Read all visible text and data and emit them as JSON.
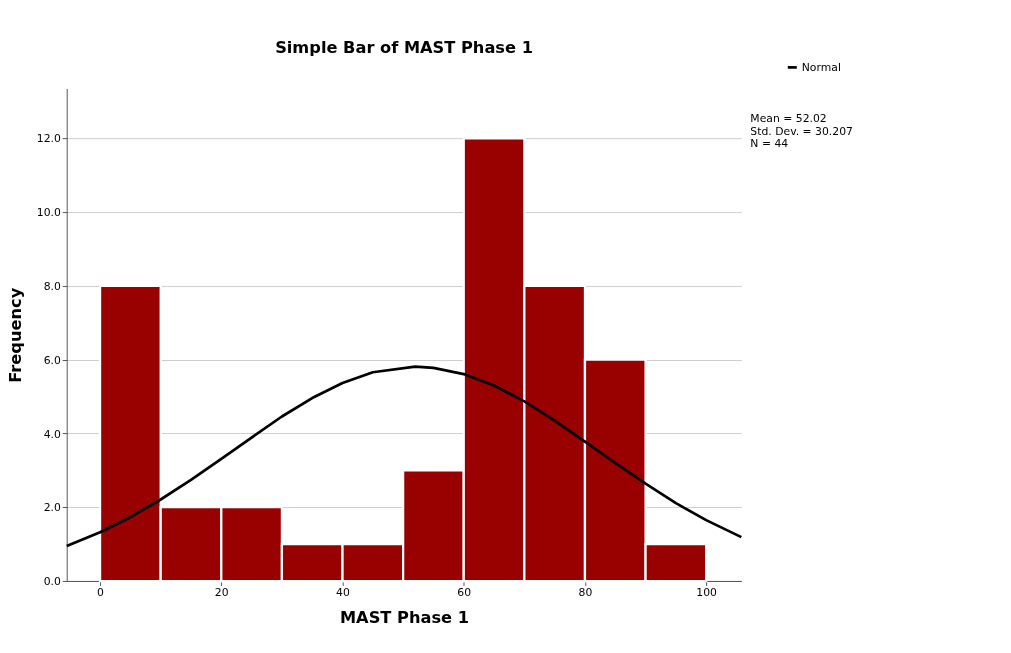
{
  "chart_data": {
    "type": "histogram",
    "title": "Simple Bar of MAST Phase 1",
    "xlabel": "MAST Phase 1",
    "ylabel": "Frequency",
    "bins": [
      0,
      10,
      20,
      30,
      40,
      50,
      60,
      70,
      80,
      90,
      100
    ],
    "values": [
      8,
      2,
      2,
      1,
      1,
      3,
      12,
      8,
      6,
      1
    ],
    "color": "#990000",
    "series": [
      {
        "name": "Normal",
        "type": "line",
        "color": "#000000",
        "x": [
          -5.5,
          0,
          5,
          10,
          15,
          20,
          25,
          30,
          35,
          40,
          45,
          52,
          55,
          60,
          65,
          70,
          75,
          80,
          85,
          90,
          95,
          100,
          105.8
        ],
        "values": [
          0.95,
          1.32,
          1.73,
          2.21,
          2.74,
          3.31,
          3.89,
          4.46,
          4.96,
          5.37,
          5.66,
          5.81,
          5.78,
          5.61,
          5.3,
          4.87,
          4.35,
          3.78,
          3.2,
          2.64,
          2.11,
          1.65,
          1.19
        ]
      }
    ],
    "annotations": [
      "Mean = 52.02",
      "Std. Dev. = 30.207",
      "N = 44"
    ],
    "xlim": [
      -5.5,
      105.8
    ],
    "xticks": [
      0,
      20,
      40,
      60,
      80,
      100
    ],
    "ylim": [
      0,
      13.35
    ],
    "yticks": [
      {
        "value": 0,
        "label": "0.0"
      },
      {
        "value": 2,
        "label": "2.0"
      },
      {
        "value": 4,
        "label": "4.0"
      },
      {
        "value": 6,
        "label": "6.0"
      },
      {
        "value": 8,
        "label": "8.0"
      },
      {
        "value": 10,
        "label": "10.0"
      },
      {
        "value": 12,
        "label": "12.0"
      }
    ],
    "grid": "y",
    "legend": "top right",
    "marker": "none",
    "line_style": "solid"
  }
}
